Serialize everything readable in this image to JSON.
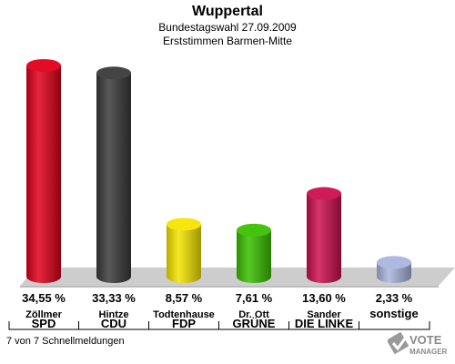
{
  "header": {
    "title": "Wuppertal",
    "subtitle1": "Bundestagswahl 27.09.2009",
    "subtitle2": "Erststimmen Barmen-Mitte"
  },
  "footer": {
    "text": "7 von 7 Schnellmeldungen"
  },
  "logo": {
    "line1": "VOTE",
    "line2": "MANAGER"
  },
  "chart_data": {
    "type": "bar",
    "title": "Wuppertal",
    "subtitle": "Bundestagswahl 27.09.2009 / Erststimmen Barmen-Mitte",
    "ylim": [
      0,
      35
    ],
    "grid": false,
    "bars": [
      {
        "candidate": "Zöllmer",
        "party": "SPD",
        "value": 34.55,
        "label": "34,55 %",
        "color": "#e0001a"
      },
      {
        "candidate": "Hintze",
        "party": "CDU",
        "value": 33.33,
        "label": "33,33 %",
        "color": "#3a3a3a"
      },
      {
        "candidate": "Todtenhause",
        "party": "FDP",
        "value": 8.57,
        "label": "8,57 %",
        "color": "#f5e500"
      },
      {
        "candidate": "Dr. Ott",
        "party": "GRÜNE",
        "value": 7.61,
        "label": "7,61 %",
        "color": "#3cc000"
      },
      {
        "candidate": "Sander",
        "party": "DIE LINKE",
        "value": 13.6,
        "label": "13,60 %",
        "color": "#cc1050"
      },
      {
        "candidate": "",
        "party": "sonstige",
        "value": 2.33,
        "label": "2,33 %",
        "color": "#a9b5df"
      }
    ]
  }
}
